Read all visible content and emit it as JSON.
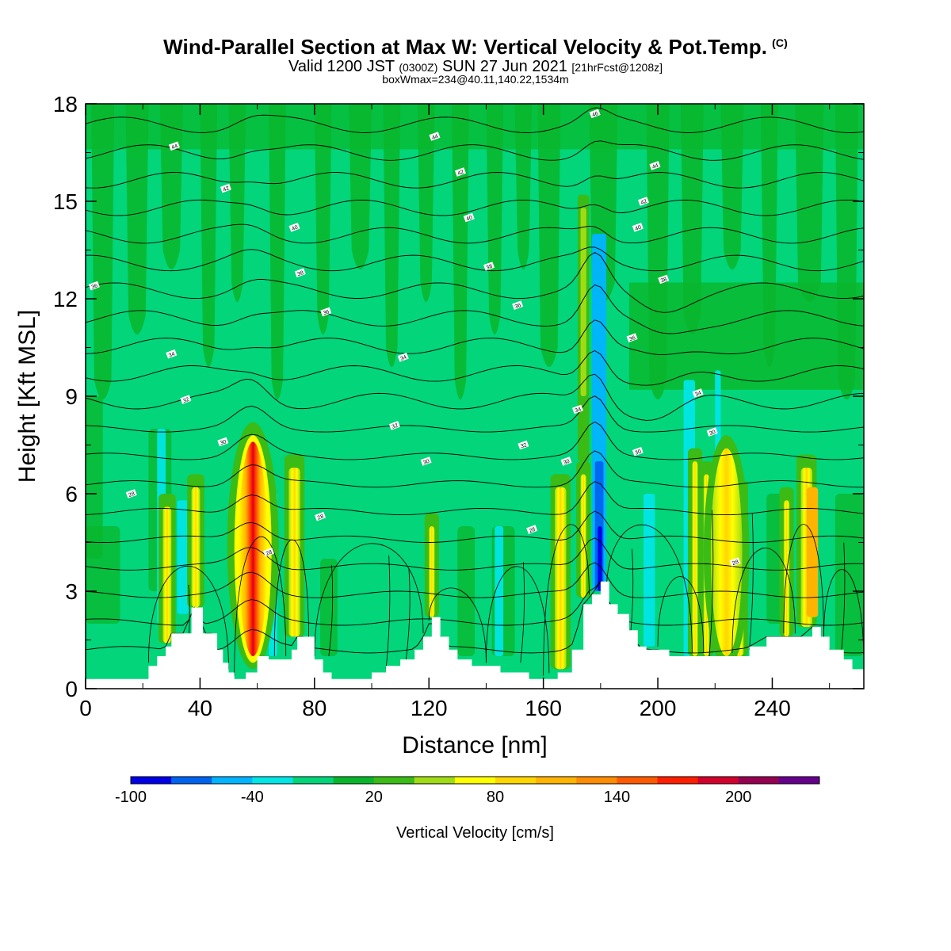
{
  "title": {
    "main": "Wind-Parallel Section at Max W: Vertical Velocity & Pot.Temp.",
    "copyright": "(C)",
    "sub_a": "Valid 1200 JST",
    "sub_b": "(0300Z)",
    "sub_c": "SUN 27 Jun 2021",
    "sub_d": "[21hrFcst@1208z]",
    "sub2": "boxWmax=234@40.11,140.22,1534m"
  },
  "colors": {
    "background": "#02d57a",
    "field_light": "#02d57a",
    "field_dark": "#09b62b",
    "terrain": "#ffffff",
    "contour": "#000000"
  },
  "chart_data": {
    "type": "contour",
    "xlabel": "Distance [nm]",
    "ylabel": "Height [Kft MSL]",
    "xlim": [
      0,
      272
    ],
    "ylim": [
      0,
      18
    ],
    "xticks": [
      "0",
      "40",
      "80",
      "120",
      "160",
      "200",
      "240"
    ],
    "xtick_values": [
      0,
      40,
      80,
      120,
      160,
      200,
      240
    ],
    "yticks": [
      "0",
      "3",
      "6",
      "9",
      "12",
      "15",
      "18"
    ],
    "ytick_values": [
      0,
      3,
      6,
      9,
      12,
      15,
      18
    ],
    "colorbar": {
      "label": "Vertical Velocity [cm/s]",
      "ticks": [
        "-100",
        "-40",
        "20",
        "80",
        "140",
        "200"
      ],
      "colors": [
        "#0000e6",
        "#0063f0",
        "#00b4ff",
        "#00e6e6",
        "#02d57a",
        "#09b62b",
        "#3bbb15",
        "#a0dc14",
        "#ffff00",
        "#ffd600",
        "#ffb400",
        "#ff8c00",
        "#ff5a00",
        "#ff1e00",
        "#d2002d",
        "#960050",
        "#64008c"
      ]
    },
    "terrain_kft": [
      [
        0,
        0.3
      ],
      [
        20,
        0.3
      ],
      [
        22,
        0.7
      ],
      [
        25,
        1.0
      ],
      [
        28,
        1.3
      ],
      [
        30,
        1.7
      ],
      [
        35,
        1.7
      ],
      [
        37,
        2.5
      ],
      [
        39,
        2.5
      ],
      [
        41,
        1.7
      ],
      [
        44,
        1.7
      ],
      [
        46,
        1.2
      ],
      [
        48,
        0.8
      ],
      [
        50,
        0.5
      ],
      [
        52,
        0.3
      ],
      [
        56,
        0.5
      ],
      [
        60,
        1.0
      ],
      [
        64,
        0.9
      ],
      [
        66,
        0.9
      ],
      [
        70,
        0.9
      ],
      [
        72,
        1.2
      ],
      [
        74,
        1.6
      ],
      [
        77,
        1.6
      ],
      [
        80,
        0.9
      ],
      [
        83,
        0.5
      ],
      [
        86,
        0.3
      ],
      [
        95,
        0.3
      ],
      [
        100,
        0.5
      ],
      [
        105,
        0.7
      ],
      [
        110,
        0.9
      ],
      [
        115,
        1.2
      ],
      [
        118,
        1.6
      ],
      [
        121,
        2.2
      ],
      [
        124,
        1.6
      ],
      [
        127,
        1.2
      ],
      [
        130,
        0.9
      ],
      [
        135,
        0.7
      ],
      [
        140,
        0.7
      ],
      [
        145,
        0.5
      ],
      [
        150,
        0.5
      ],
      [
        155,
        0.3
      ],
      [
        160,
        0.3
      ],
      [
        165,
        0.5
      ],
      [
        170,
        1.2
      ],
      [
        174,
        2.6
      ],
      [
        177,
        2.9
      ],
      [
        180,
        3.3
      ],
      [
        183,
        2.6
      ],
      [
        186,
        2.3
      ],
      [
        190,
        1.8
      ],
      [
        193,
        1.3
      ],
      [
        196,
        1.2
      ],
      [
        200,
        1.2
      ],
      [
        204,
        1.0
      ],
      [
        210,
        1.0
      ],
      [
        216,
        1.0
      ],
      [
        220,
        1.0
      ],
      [
        226,
        1.0
      ],
      [
        232,
        1.3
      ],
      [
        238,
        1.6
      ],
      [
        240,
        1.6
      ],
      [
        245,
        1.6
      ],
      [
        250,
        1.6
      ],
      [
        254,
        1.9
      ],
      [
        257,
        1.6
      ],
      [
        260,
        1.2
      ],
      [
        265,
        0.9
      ],
      [
        268,
        0.6
      ],
      [
        272,
        0.6
      ]
    ],
    "isentrope_labels": [
      {
        "x": 31,
        "y": 16.7,
        "text": "44"
      },
      {
        "x": 122,
        "y": 17.0,
        "text": "44"
      },
      {
        "x": 178,
        "y": 17.7,
        "text": "46"
      },
      {
        "x": 199,
        "y": 16.1,
        "text": "44"
      },
      {
        "x": 49,
        "y": 15.4,
        "text": "42"
      },
      {
        "x": 131,
        "y": 15.9,
        "text": "42"
      },
      {
        "x": 195,
        "y": 15.0,
        "text": "42"
      },
      {
        "x": 73,
        "y": 14.2,
        "text": "40"
      },
      {
        "x": 134,
        "y": 14.5,
        "text": "40"
      },
      {
        "x": 193,
        "y": 14.2,
        "text": "40"
      },
      {
        "x": 75,
        "y": 12.8,
        "text": "38"
      },
      {
        "x": 141,
        "y": 13.0,
        "text": "38"
      },
      {
        "x": 202,
        "y": 12.6,
        "text": "38"
      },
      {
        "x": 3,
        "y": 12.4,
        "text": "36"
      },
      {
        "x": 84,
        "y": 11.6,
        "text": "36"
      },
      {
        "x": 151,
        "y": 11.8,
        "text": "36"
      },
      {
        "x": 191,
        "y": 10.8,
        "text": "36"
      },
      {
        "x": 30,
        "y": 10.3,
        "text": "34"
      },
      {
        "x": 111,
        "y": 10.2,
        "text": "34"
      },
      {
        "x": 214,
        "y": 9.1,
        "text": "34"
      },
      {
        "x": 35,
        "y": 8.9,
        "text": "32"
      },
      {
        "x": 108,
        "y": 8.1,
        "text": "32"
      },
      {
        "x": 153,
        "y": 7.5,
        "text": "32"
      },
      {
        "x": 172,
        "y": 8.6,
        "text": "34"
      },
      {
        "x": 48,
        "y": 7.6,
        "text": "30"
      },
      {
        "x": 119,
        "y": 7.0,
        "text": "30"
      },
      {
        "x": 168,
        "y": 7.0,
        "text": "30"
      },
      {
        "x": 193,
        "y": 7.3,
        "text": "30"
      },
      {
        "x": 219,
        "y": 7.9,
        "text": "30"
      },
      {
        "x": 16,
        "y": 6.0,
        "text": "28"
      },
      {
        "x": 82,
        "y": 5.3,
        "text": "28"
      },
      {
        "x": 64,
        "y": 4.2,
        "text": "28"
      },
      {
        "x": 156,
        "y": 4.9,
        "text": "28"
      },
      {
        "x": 227,
        "y": 3.9,
        "text": "28"
      }
    ]
  }
}
